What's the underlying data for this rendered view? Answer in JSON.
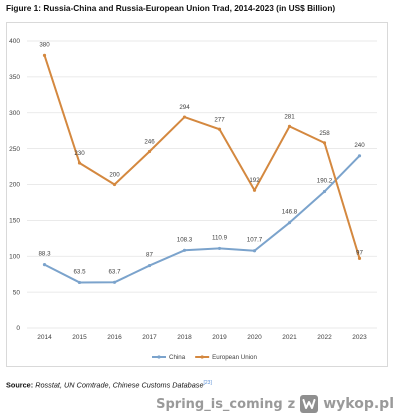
{
  "figure_title": "Figure 1: Russia-China and Russia-European Union Trad, 2014-2023 (in US$ Billion)",
  "source": {
    "label": "Source:",
    "text": "Rosstat, UN Comtrade, Chinese Customs Database",
    "ref": "[23]"
  },
  "watermark": {
    "username": "Spring_is_coming",
    "separator": "z",
    "logo_text": "wykop.pl"
  },
  "colors": {
    "china": "#7ba3cc",
    "eu": "#d4883f",
    "grid": "#e3e3e3",
    "axis_text": "#404040"
  },
  "chart_data": {
    "type": "line",
    "title": "",
    "xlabel": "",
    "ylabel": "",
    "x": [
      "2014",
      "2015",
      "2016",
      "2017",
      "2018",
      "2019",
      "2020",
      "2021",
      "2022",
      "2023"
    ],
    "ylim": [
      0,
      400
    ],
    "yticks": [
      0,
      50,
      100,
      150,
      200,
      250,
      300,
      350,
      400
    ],
    "grid": true,
    "legend_position": "bottom",
    "series": [
      {
        "name": "China",
        "values": [
          88.3,
          63.5,
          63.7,
          87,
          108.3,
          110.9,
          107.7,
          146.8,
          190.2,
          240
        ],
        "labels": [
          "88.3",
          "63.5",
          "63.7",
          "87",
          "108.3",
          "110.9",
          "107.7",
          "146.8",
          "190.2",
          "240"
        ]
      },
      {
        "name": "European Union",
        "values": [
          380,
          230,
          200,
          246,
          294,
          277,
          192,
          281,
          258,
          97
        ],
        "labels": [
          "380",
          "230",
          "200",
          "246",
          "294",
          "277",
          "192",
          "281",
          "258",
          "97"
        ]
      }
    ]
  }
}
